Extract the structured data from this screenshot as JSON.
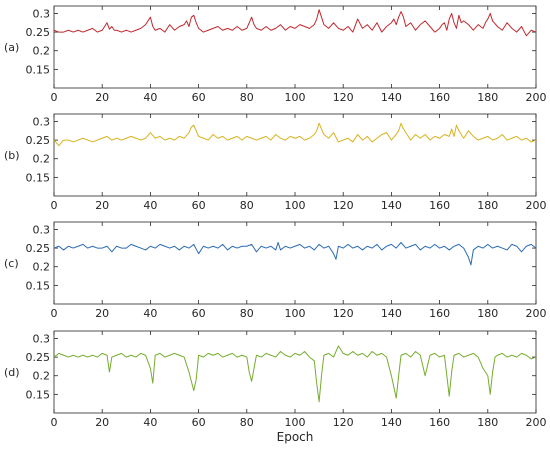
{
  "chart_data": [
    {
      "type": "line",
      "panel_label": "(a)",
      "color": "#c0282d",
      "xlim": [
        0,
        200
      ],
      "ylim": [
        0.1,
        0.32
      ],
      "xticks": [
        0,
        20,
        40,
        60,
        80,
        100,
        120,
        140,
        160,
        180,
        200
      ],
      "yticks": [
        0.15,
        0.2,
        0.25,
        0.3
      ],
      "ytick_labels": [
        "0.15",
        "0.2",
        "0.25",
        "0.3"
      ],
      "xlabel": "",
      "x": [
        0,
        2,
        4,
        6,
        8,
        10,
        12,
        14,
        16,
        18,
        20,
        21,
        22,
        23,
        24,
        25,
        26,
        28,
        30,
        32,
        34,
        36,
        38,
        39,
        40,
        41,
        42,
        44,
        46,
        48,
        50,
        52,
        54,
        55,
        56,
        57,
        58,
        59,
        60,
        62,
        64,
        66,
        68,
        70,
        72,
        74,
        76,
        78,
        80,
        81,
        82,
        83,
        84,
        86,
        88,
        90,
        92,
        94,
        96,
        98,
        100,
        102,
        104,
        106,
        108,
        109,
        110,
        111,
        112,
        114,
        116,
        118,
        120,
        122,
        124,
        126,
        128,
        130,
        132,
        134,
        136,
        138,
        140,
        141,
        142,
        143,
        144,
        145,
        146,
        148,
        150,
        152,
        154,
        156,
        158,
        160,
        161,
        162,
        163,
        164,
        165,
        166,
        167,
        168,
        169,
        170,
        172,
        174,
        176,
        178,
        179,
        180,
        181,
        182,
        184,
        186,
        188,
        190,
        192,
        194,
        196,
        198,
        200
      ],
      "values": [
        0.255,
        0.25,
        0.25,
        0.255,
        0.25,
        0.255,
        0.25,
        0.255,
        0.26,
        0.25,
        0.255,
        0.265,
        0.275,
        0.258,
        0.265,
        0.255,
        0.255,
        0.25,
        0.255,
        0.25,
        0.255,
        0.26,
        0.27,
        0.28,
        0.29,
        0.265,
        0.255,
        0.26,
        0.25,
        0.27,
        0.255,
        0.265,
        0.27,
        0.28,
        0.265,
        0.29,
        0.295,
        0.275,
        0.26,
        0.25,
        0.255,
        0.26,
        0.265,
        0.255,
        0.26,
        0.255,
        0.265,
        0.255,
        0.26,
        0.275,
        0.29,
        0.27,
        0.26,
        0.255,
        0.265,
        0.255,
        0.26,
        0.27,
        0.255,
        0.265,
        0.26,
        0.27,
        0.265,
        0.26,
        0.27,
        0.285,
        0.31,
        0.29,
        0.27,
        0.26,
        0.275,
        0.26,
        0.255,
        0.265,
        0.25,
        0.285,
        0.26,
        0.27,
        0.255,
        0.275,
        0.25,
        0.265,
        0.275,
        0.285,
        0.27,
        0.29,
        0.305,
        0.29,
        0.265,
        0.275,
        0.255,
        0.27,
        0.28,
        0.265,
        0.25,
        0.26,
        0.27,
        0.275,
        0.255,
        0.285,
        0.3,
        0.275,
        0.26,
        0.295,
        0.275,
        0.28,
        0.27,
        0.255,
        0.27,
        0.26,
        0.275,
        0.285,
        0.3,
        0.28,
        0.265,
        0.255,
        0.275,
        0.26,
        0.25,
        0.265,
        0.24,
        0.255,
        0.25
      ]
    },
    {
      "type": "line",
      "panel_label": "(b)",
      "color": "#d9b21f",
      "xlim": [
        0,
        200
      ],
      "ylim": [
        0.1,
        0.32
      ],
      "xticks": [
        0,
        20,
        40,
        60,
        80,
        100,
        120,
        140,
        160,
        180,
        200
      ],
      "yticks": [
        0.15,
        0.2,
        0.25,
        0.3
      ],
      "ytick_labels": [
        "0.15",
        "0.2",
        "0.25",
        "0.3"
      ],
      "xlabel": "",
      "x": [
        0,
        2,
        4,
        6,
        8,
        10,
        12,
        14,
        16,
        18,
        20,
        22,
        24,
        26,
        28,
        30,
        32,
        34,
        36,
        38,
        40,
        42,
        44,
        46,
        48,
        50,
        52,
        54,
        56,
        57,
        58,
        59,
        60,
        62,
        64,
        66,
        68,
        70,
        72,
        74,
        76,
        78,
        80,
        82,
        84,
        86,
        88,
        90,
        92,
        94,
        96,
        98,
        100,
        102,
        104,
        106,
        108,
        109,
        110,
        111,
        112,
        114,
        116,
        118,
        120,
        122,
        124,
        126,
        128,
        130,
        132,
        134,
        136,
        138,
        140,
        142,
        143,
        144,
        145,
        146,
        148,
        150,
        152,
        154,
        156,
        158,
        160,
        162,
        164,
        165,
        166,
        167,
        168,
        170,
        172,
        174,
        176,
        178,
        180,
        182,
        184,
        186,
        188,
        190,
        192,
        194,
        196,
        198,
        200
      ],
      "values": [
        0.25,
        0.235,
        0.25,
        0.25,
        0.245,
        0.25,
        0.255,
        0.25,
        0.245,
        0.25,
        0.255,
        0.26,
        0.25,
        0.255,
        0.25,
        0.255,
        0.26,
        0.255,
        0.25,
        0.255,
        0.27,
        0.255,
        0.26,
        0.25,
        0.255,
        0.25,
        0.26,
        0.255,
        0.27,
        0.285,
        0.29,
        0.275,
        0.26,
        0.255,
        0.25,
        0.265,
        0.255,
        0.26,
        0.25,
        0.255,
        0.26,
        0.25,
        0.26,
        0.255,
        0.25,
        0.255,
        0.26,
        0.25,
        0.265,
        0.255,
        0.25,
        0.26,
        0.255,
        0.26,
        0.25,
        0.255,
        0.265,
        0.275,
        0.295,
        0.28,
        0.265,
        0.255,
        0.27,
        0.245,
        0.25,
        0.255,
        0.245,
        0.265,
        0.25,
        0.26,
        0.245,
        0.255,
        0.265,
        0.27,
        0.25,
        0.265,
        0.275,
        0.295,
        0.28,
        0.27,
        0.25,
        0.265,
        0.255,
        0.265,
        0.25,
        0.26,
        0.255,
        0.265,
        0.26,
        0.28,
        0.26,
        0.29,
        0.275,
        0.255,
        0.275,
        0.26,
        0.25,
        0.255,
        0.26,
        0.25,
        0.255,
        0.265,
        0.25,
        0.255,
        0.26,
        0.25,
        0.255,
        0.245,
        0.25
      ]
    },
    {
      "type": "line",
      "panel_label": "(c)",
      "color": "#2c6bb0",
      "xlim": [
        0,
        200
      ],
      "ylim": [
        0.1,
        0.32
      ],
      "xticks": [
        0,
        20,
        40,
        60,
        80,
        100,
        120,
        140,
        160,
        180,
        200
      ],
      "yticks": [
        0.15,
        0.2,
        0.25,
        0.3
      ],
      "ytick_labels": [
        "0.15",
        "0.2",
        "0.25",
        "0.3"
      ],
      "xlabel": "",
      "x": [
        0,
        2,
        4,
        6,
        8,
        10,
        12,
        14,
        16,
        18,
        20,
        22,
        24,
        26,
        28,
        30,
        32,
        34,
        36,
        38,
        40,
        42,
        44,
        46,
        48,
        50,
        52,
        54,
        56,
        58,
        60,
        62,
        64,
        66,
        68,
        70,
        72,
        74,
        76,
        78,
        80,
        82,
        84,
        86,
        88,
        90,
        92,
        93,
        94,
        96,
        98,
        100,
        102,
        104,
        106,
        108,
        110,
        112,
        114,
        116,
        117,
        118,
        120,
        122,
        124,
        126,
        128,
        130,
        132,
        134,
        136,
        138,
        140,
        142,
        144,
        146,
        148,
        150,
        152,
        154,
        156,
        158,
        160,
        162,
        164,
        166,
        168,
        170,
        172,
        173,
        174,
        176,
        178,
        180,
        182,
        184,
        186,
        188,
        190,
        192,
        194,
        196,
        198,
        200
      ],
      "values": [
        0.25,
        0.255,
        0.245,
        0.255,
        0.25,
        0.255,
        0.26,
        0.25,
        0.255,
        0.25,
        0.25,
        0.255,
        0.24,
        0.255,
        0.25,
        0.25,
        0.26,
        0.255,
        0.25,
        0.245,
        0.255,
        0.25,
        0.26,
        0.255,
        0.25,
        0.255,
        0.245,
        0.255,
        0.25,
        0.26,
        0.235,
        0.255,
        0.25,
        0.255,
        0.25,
        0.26,
        0.245,
        0.255,
        0.25,
        0.255,
        0.255,
        0.26,
        0.24,
        0.255,
        0.25,
        0.255,
        0.245,
        0.265,
        0.245,
        0.255,
        0.25,
        0.255,
        0.26,
        0.25,
        0.255,
        0.245,
        0.26,
        0.25,
        0.255,
        0.235,
        0.22,
        0.255,
        0.25,
        0.26,
        0.25,
        0.255,
        0.245,
        0.255,
        0.25,
        0.26,
        0.245,
        0.255,
        0.26,
        0.25,
        0.265,
        0.25,
        0.255,
        0.26,
        0.245,
        0.255,
        0.25,
        0.26,
        0.25,
        0.255,
        0.245,
        0.255,
        0.26,
        0.25,
        0.225,
        0.205,
        0.245,
        0.255,
        0.25,
        0.26,
        0.25,
        0.255,
        0.25,
        0.245,
        0.26,
        0.255,
        0.24,
        0.255,
        0.26,
        0.25
      ]
    },
    {
      "type": "line",
      "panel_label": "(d)",
      "color": "#77ac30",
      "xlim": [
        0,
        200
      ],
      "ylim": [
        0.1,
        0.32
      ],
      "xticks": [
        0,
        20,
        40,
        60,
        80,
        100,
        120,
        140,
        160,
        180,
        200
      ],
      "yticks": [
        0.15,
        0.2,
        0.25,
        0.3
      ],
      "ytick_labels": [
        "0.15",
        "0.2",
        "0.25",
        "0.3"
      ],
      "xlabel": "Epoch",
      "x": [
        0,
        2,
        4,
        6,
        8,
        10,
        12,
        14,
        16,
        18,
        20,
        22,
        23,
        24,
        26,
        28,
        30,
        32,
        34,
        36,
        38,
        40,
        41,
        42,
        44,
        46,
        48,
        50,
        52,
        54,
        56,
        57,
        58,
        59,
        60,
        62,
        64,
        66,
        68,
        70,
        72,
        74,
        76,
        78,
        80,
        81,
        82,
        83,
        84,
        86,
        88,
        90,
        92,
        94,
        96,
        98,
        100,
        102,
        104,
        106,
        108,
        109,
        110,
        111,
        112,
        114,
        116,
        117,
        118,
        119,
        120,
        122,
        124,
        126,
        128,
        130,
        132,
        134,
        136,
        138,
        140,
        141,
        142,
        143,
        144,
        146,
        148,
        150,
        152,
        154,
        156,
        158,
        160,
        162,
        163,
        164,
        165,
        166,
        168,
        170,
        172,
        174,
        176,
        178,
        180,
        181,
        182,
        183,
        184,
        186,
        188,
        190,
        192,
        194,
        196,
        198,
        200
      ],
      "values": [
        0.25,
        0.26,
        0.255,
        0.25,
        0.255,
        0.25,
        0.255,
        0.25,
        0.255,
        0.25,
        0.26,
        0.255,
        0.21,
        0.25,
        0.255,
        0.26,
        0.25,
        0.255,
        0.25,
        0.26,
        0.255,
        0.22,
        0.18,
        0.255,
        0.26,
        0.25,
        0.255,
        0.26,
        0.255,
        0.25,
        0.21,
        0.185,
        0.16,
        0.19,
        0.255,
        0.25,
        0.26,
        0.255,
        0.26,
        0.25,
        0.255,
        0.26,
        0.25,
        0.255,
        0.25,
        0.21,
        0.185,
        0.22,
        0.255,
        0.25,
        0.26,
        0.255,
        0.25,
        0.265,
        0.255,
        0.25,
        0.26,
        0.255,
        0.265,
        0.25,
        0.24,
        0.18,
        0.13,
        0.2,
        0.255,
        0.26,
        0.25,
        0.265,
        0.28,
        0.27,
        0.26,
        0.255,
        0.265,
        0.255,
        0.26,
        0.25,
        0.265,
        0.255,
        0.26,
        0.25,
        0.2,
        0.17,
        0.14,
        0.2,
        0.255,
        0.26,
        0.25,
        0.265,
        0.255,
        0.2,
        0.255,
        0.26,
        0.25,
        0.255,
        0.2,
        0.145,
        0.21,
        0.255,
        0.26,
        0.25,
        0.255,
        0.26,
        0.25,
        0.22,
        0.2,
        0.15,
        0.21,
        0.25,
        0.255,
        0.26,
        0.25,
        0.255,
        0.25,
        0.26,
        0.255,
        0.245,
        0.25
      ]
    }
  ]
}
